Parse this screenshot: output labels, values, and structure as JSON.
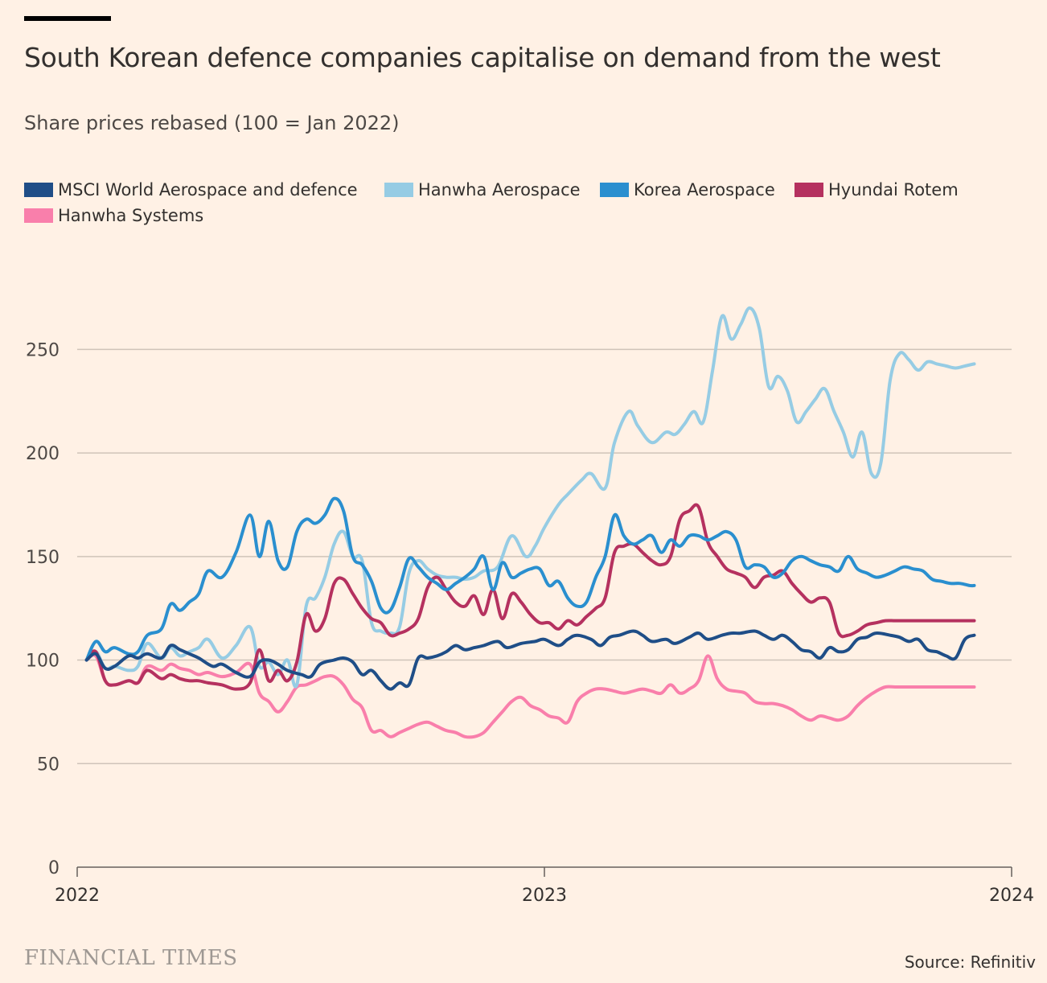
{
  "header": {
    "title": "South Korean defence companies capitalise on demand from the west",
    "subtitle": "Share prices rebased (100 = Jan 2022)"
  },
  "footer": {
    "brand": "FINANCIAL TIMES",
    "source": "Source: Refinitiv"
  },
  "chart_data": {
    "type": "line",
    "title": "South Korean defence companies capitalise on demand from the west",
    "subtitle": "Share prices rebased (100 = Jan 2022)",
    "xlabel": "",
    "ylabel": "",
    "xlim": [
      2022.0,
      2024.0
    ],
    "ylim": [
      0,
      275
    ],
    "x_ticks": [
      2022,
      2023,
      2024
    ],
    "x_tick_labels": [
      "2022",
      "2023",
      "2024"
    ],
    "y_ticks": [
      0,
      50,
      100,
      150,
      200,
      250
    ],
    "y_tick_labels": [
      "0",
      "50",
      "100",
      "150",
      "200",
      "250"
    ],
    "grid": "horizontal",
    "legend_position": "top-left",
    "series": [
      {
        "name": "MSCI World Aerospace and defence",
        "color": "#1f4e87",
        "x": [
          2022.02,
          2022.04,
          2022.06,
          2022.08,
          2022.11,
          2022.13,
          2022.15,
          2022.18,
          2022.2,
          2022.22,
          2022.24,
          2022.26,
          2022.29,
          2022.31,
          2022.34,
          2022.37,
          2022.39,
          2022.41,
          2022.43,
          2022.45,
          2022.48,
          2022.5,
          2022.52,
          2022.55,
          2022.57,
          2022.59,
          2022.61,
          2022.63,
          2022.65,
          2022.67,
          2022.69,
          2022.71,
          2022.73,
          2022.75,
          2022.77,
          2022.79,
          2022.81,
          2022.83,
          2022.85,
          2022.87,
          2022.9,
          2022.92,
          2022.95,
          2022.98,
          2023.0,
          2023.03,
          2023.05,
          2023.07,
          2023.1,
          2023.12,
          2023.14,
          2023.16,
          2023.19,
          2023.21,
          2023.23,
          2023.26,
          2023.28,
          2023.31,
          2023.33,
          2023.35,
          2023.38,
          2023.4,
          2023.42,
          2023.45,
          2023.47,
          2023.49,
          2023.51,
          2023.53,
          2023.55,
          2023.57,
          2023.59,
          2023.61,
          2023.63,
          2023.65,
          2023.67,
          2023.69,
          2023.71,
          2023.74,
          2023.76,
          2023.78,
          2023.8,
          2023.82,
          2023.84,
          2023.86,
          2023.88,
          2023.9,
          2023.92
        ],
        "values": [
          100,
          103,
          96,
          97,
          102,
          101,
          103,
          101,
          107,
          105,
          103,
          101,
          97,
          98,
          94,
          92,
          99,
          100,
          98,
          95,
          93,
          92,
          98,
          100,
          101,
          99,
          93,
          95,
          90,
          86,
          89,
          88,
          101,
          101,
          102,
          104,
          107,
          105,
          106,
          107,
          109,
          106,
          108,
          109,
          110,
          107,
          110,
          112,
          110,
          107,
          111,
          112,
          114,
          112,
          109,
          110,
          108,
          111,
          113,
          110,
          112,
          113,
          113,
          114,
          112,
          110,
          112,
          109,
          105,
          104,
          101,
          106,
          104,
          105,
          110,
          111,
          113,
          112,
          111,
          109,
          110,
          105,
          104,
          102,
          101,
          110,
          112
        ]
      },
      {
        "name": "Hanwha Aerospace",
        "color": "#96cce4",
        "x": [
          2022.02,
          2022.04,
          2022.06,
          2022.08,
          2022.11,
          2022.13,
          2022.15,
          2022.18,
          2022.2,
          2022.22,
          2022.24,
          2022.26,
          2022.28,
          2022.31,
          2022.34,
          2022.37,
          2022.39,
          2022.41,
          2022.43,
          2022.45,
          2022.47,
          2022.49,
          2022.51,
          2022.53,
          2022.55,
          2022.57,
          2022.59,
          2022.61,
          2022.63,
          2022.65,
          2022.67,
          2022.69,
          2022.71,
          2022.73,
          2022.75,
          2022.77,
          2022.79,
          2022.81,
          2022.83,
          2022.85,
          2022.87,
          2022.9,
          2022.93,
          2022.96,
          2022.98,
          2023.0,
          2023.03,
          2023.05,
          2023.08,
          2023.1,
          2023.13,
          2023.15,
          2023.18,
          2023.2,
          2023.23,
          2023.26,
          2023.28,
          2023.3,
          2023.32,
          2023.34,
          2023.36,
          2023.38,
          2023.4,
          2023.42,
          2023.44,
          2023.46,
          2023.48,
          2023.5,
          2023.52,
          2023.54,
          2023.56,
          2023.58,
          2023.6,
          2023.62,
          2023.64,
          2023.66,
          2023.68,
          2023.7,
          2023.72,
          2023.74,
          2023.76,
          2023.78,
          2023.8,
          2023.82,
          2023.84,
          2023.86,
          2023.88,
          2023.9,
          2023.92
        ],
        "values": [
          100,
          104,
          96,
          97,
          95,
          97,
          108,
          101,
          106,
          102,
          104,
          106,
          110,
          101,
          107,
          116,
          97,
          99,
          93,
          100,
          88,
          126,
          130,
          140,
          156,
          162,
          150,
          148,
          118,
          114,
          113,
          116,
          142,
          148,
          144,
          141,
          140,
          140,
          139,
          140,
          143,
          145,
          160,
          150,
          155,
          164,
          175,
          180,
          187,
          190,
          183,
          205,
          220,
          213,
          205,
          210,
          209,
          214,
          220,
          215,
          240,
          266,
          255,
          262,
          270,
          260,
          232,
          237,
          230,
          215,
          220,
          226,
          231,
          220,
          210,
          198,
          210,
          190,
          195,
          235,
          248,
          245,
          240,
          244,
          243,
          242,
          241,
          242,
          243
        ]
      },
      {
        "name": "Korea Aerospace",
        "color": "#2a8fcf",
        "x": [
          2022.02,
          2022.04,
          2022.06,
          2022.08,
          2022.11,
          2022.13,
          2022.15,
          2022.18,
          2022.2,
          2022.22,
          2022.24,
          2022.26,
          2022.28,
          2022.31,
          2022.34,
          2022.37,
          2022.39,
          2022.41,
          2022.43,
          2022.45,
          2022.47,
          2022.49,
          2022.51,
          2022.53,
          2022.55,
          2022.57,
          2022.59,
          2022.61,
          2022.63,
          2022.65,
          2022.67,
          2022.69,
          2022.71,
          2022.73,
          2022.75,
          2022.77,
          2022.79,
          2022.81,
          2022.83,
          2022.85,
          2022.87,
          2022.89,
          2022.91,
          2022.93,
          2022.95,
          2022.97,
          2022.99,
          2023.01,
          2023.03,
          2023.05,
          2023.07,
          2023.09,
          2023.11,
          2023.13,
          2023.15,
          2023.17,
          2023.19,
          2023.21,
          2023.23,
          2023.25,
          2023.27,
          2023.29,
          2023.31,
          2023.33,
          2023.35,
          2023.37,
          2023.39,
          2023.41,
          2023.43,
          2023.45,
          2023.47,
          2023.49,
          2023.51,
          2023.53,
          2023.55,
          2023.57,
          2023.59,
          2023.61,
          2023.63,
          2023.65,
          2023.67,
          2023.69,
          2023.71,
          2023.73,
          2023.75,
          2023.77,
          2023.79,
          2023.81,
          2023.83,
          2023.85,
          2023.87,
          2023.89,
          2023.91,
          2023.92
        ],
        "values": [
          100,
          109,
          104,
          106,
          103,
          104,
          112,
          115,
          127,
          124,
          128,
          132,
          143,
          140,
          152,
          170,
          150,
          167,
          148,
          145,
          162,
          168,
          166,
          170,
          178,
          172,
          150,
          146,
          138,
          125,
          124,
          135,
          149,
          145,
          140,
          137,
          134,
          137,
          140,
          144,
          150,
          134,
          147,
          140,
          142,
          144,
          144,
          136,
          138,
          130,
          126,
          128,
          140,
          150,
          170,
          160,
          156,
          158,
          160,
          152,
          158,
          155,
          160,
          160,
          158,
          160,
          162,
          158,
          145,
          146,
          145,
          140,
          142,
          148,
          150,
          148,
          146,
          145,
          143,
          150,
          144,
          142,
          140,
          141,
          143,
          145,
          144,
          143,
          139,
          138,
          137,
          137,
          136,
          136
        ]
      },
      {
        "name": "Hyundai Rotem",
        "color": "#b5315f",
        "x": [
          2022.02,
          2022.04,
          2022.06,
          2022.08,
          2022.11,
          2022.13,
          2022.15,
          2022.18,
          2022.2,
          2022.22,
          2022.24,
          2022.26,
          2022.28,
          2022.31,
          2022.34,
          2022.37,
          2022.39,
          2022.41,
          2022.43,
          2022.45,
          2022.47,
          2022.49,
          2022.51,
          2022.53,
          2022.55,
          2022.57,
          2022.59,
          2022.61,
          2022.63,
          2022.65,
          2022.67,
          2022.69,
          2022.71,
          2022.73,
          2022.75,
          2022.77,
          2022.79,
          2022.81,
          2022.83,
          2022.85,
          2022.87,
          2022.89,
          2022.91,
          2022.93,
          2022.95,
          2022.97,
          2022.99,
          2023.01,
          2023.03,
          2023.05,
          2023.07,
          2023.09,
          2023.11,
          2023.13,
          2023.15,
          2023.17,
          2023.19,
          2023.21,
          2023.23,
          2023.25,
          2023.27,
          2023.29,
          2023.31,
          2023.33,
          2023.35,
          2023.37,
          2023.39,
          2023.41,
          2023.43,
          2023.45,
          2023.47,
          2023.49,
          2023.51,
          2023.53,
          2023.55,
          2023.57,
          2023.59,
          2023.61,
          2023.63,
          2023.65,
          2023.67,
          2023.69,
          2023.71,
          2023.73,
          2023.75,
          2023.77,
          2023.79,
          2023.81,
          2023.83,
          2023.85,
          2023.87,
          2023.89,
          2023.91,
          2023.92
        ],
        "values": [
          100,
          104,
          90,
          88,
          90,
          89,
          95,
          91,
          93,
          91,
          90,
          90,
          89,
          88,
          86,
          89,
          105,
          90,
          95,
          90,
          99,
          122,
          114,
          120,
          137,
          139,
          132,
          125,
          120,
          118,
          112,
          113,
          115,
          120,
          135,
          140,
          134,
          128,
          126,
          131,
          122,
          134,
          120,
          132,
          128,
          122,
          118,
          118,
          115,
          119,
          117,
          121,
          125,
          130,
          152,
          155,
          156,
          152,
          148,
          146,
          150,
          168,
          172,
          174,
          157,
          150,
          144,
          142,
          140,
          135,
          140,
          141,
          143,
          137,
          132,
          128,
          130,
          128,
          113,
          112,
          114,
          117,
          118,
          119,
          119,
          119,
          119,
          119,
          119,
          119,
          119,
          119,
          119,
          119
        ]
      },
      {
        "name": "Hanwha Systems",
        "color": "#f97fab",
        "x": [
          2022.02,
          2022.04,
          2022.06,
          2022.08,
          2022.11,
          2022.13,
          2022.15,
          2022.18,
          2022.2,
          2022.22,
          2022.24,
          2022.26,
          2022.28,
          2022.31,
          2022.34,
          2022.37,
          2022.39,
          2022.41,
          2022.43,
          2022.45,
          2022.47,
          2022.49,
          2022.51,
          2022.53,
          2022.55,
          2022.57,
          2022.59,
          2022.61,
          2022.63,
          2022.65,
          2022.67,
          2022.69,
          2022.71,
          2022.73,
          2022.75,
          2022.77,
          2022.79,
          2022.81,
          2022.83,
          2022.85,
          2022.87,
          2022.89,
          2022.91,
          2022.93,
          2022.95,
          2022.97,
          2022.99,
          2023.01,
          2023.03,
          2023.05,
          2023.07,
          2023.09,
          2023.11,
          2023.13,
          2023.15,
          2023.17,
          2023.19,
          2023.21,
          2023.23,
          2023.25,
          2023.27,
          2023.29,
          2023.31,
          2023.33,
          2023.35,
          2023.37,
          2023.39,
          2023.41,
          2023.43,
          2023.45,
          2023.47,
          2023.49,
          2023.51,
          2023.53,
          2023.55,
          2023.57,
          2023.59,
          2023.61,
          2023.63,
          2023.65,
          2023.67,
          2023.69,
          2023.71,
          2023.73,
          2023.75,
          2023.77,
          2023.79,
          2023.81,
          2023.83,
          2023.85,
          2023.87,
          2023.89,
          2023.91,
          2023.92
        ],
        "values": [
          100,
          102,
          90,
          88,
          90,
          89,
          97,
          95,
          98,
          96,
          95,
          93,
          94,
          92,
          94,
          98,
          84,
          80,
          75,
          80,
          87,
          88,
          90,
          92,
          92,
          88,
          81,
          77,
          66,
          66,
          63,
          65,
          67,
          69,
          70,
          68,
          66,
          65,
          63,
          63,
          65,
          70,
          75,
          80,
          82,
          78,
          76,
          73,
          72,
          70,
          80,
          84,
          86,
          86,
          85,
          84,
          85,
          86,
          85,
          84,
          88,
          84,
          86,
          90,
          102,
          91,
          86,
          85,
          84,
          80,
          79,
          79,
          78,
          76,
          73,
          71,
          73,
          72,
          71,
          73,
          78,
          82,
          85,
          87,
          87,
          87,
          87,
          87,
          87,
          87,
          87,
          87,
          87,
          87
        ]
      }
    ]
  }
}
